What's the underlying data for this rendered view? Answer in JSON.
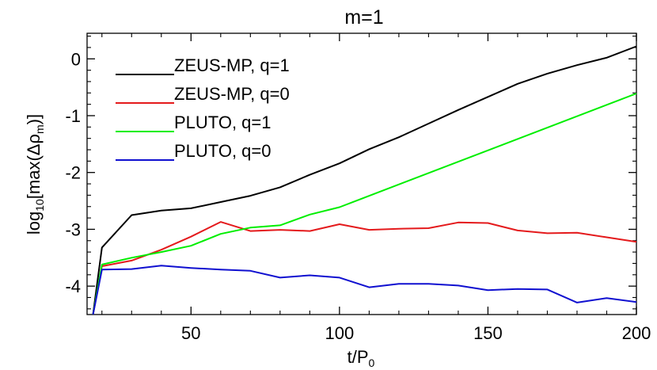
{
  "chart_data": {
    "type": "line",
    "title": "m=1",
    "xlabel": "t/P",
    "xlabel_sub": "0",
    "ylabel_pre": "log",
    "ylabel_sub1": "10",
    "ylabel_mid": "[max(Δρ",
    "ylabel_sub2": "m",
    "ylabel_post": ")]",
    "xlim": [
      15,
      200
    ],
    "ylim": [
      -4.5,
      0.45
    ],
    "xticks": [
      50,
      100,
      150,
      200
    ],
    "yticks": [
      0,
      -1,
      -2,
      -3,
      -4
    ],
    "xtick_labels": [
      "50",
      "100",
      "150",
      "200"
    ],
    "ytick_labels": [
      "0",
      "-1",
      "-2",
      "-3",
      "-4"
    ],
    "legend_position": "top-left",
    "grid": false,
    "series": [
      {
        "name": "ZEUS-MP, q=1",
        "color": "#000000",
        "x": [
          17,
          20,
          30,
          40,
          50,
          60,
          70,
          80,
          90,
          100,
          110,
          120,
          130,
          140,
          150,
          160,
          170,
          180,
          190,
          200
        ],
        "y": [
          -4.5,
          -3.32,
          -2.75,
          -2.67,
          -2.63,
          -2.52,
          -2.41,
          -2.26,
          -2.04,
          -1.84,
          -1.59,
          -1.38,
          -1.14,
          -0.9,
          -0.67,
          -0.44,
          -0.26,
          -0.11,
          0.02,
          0.22
        ]
      },
      {
        "name": "ZEUS-MP, q=0",
        "color": "#e41a1c",
        "x": [
          17,
          20,
          30,
          40,
          50,
          60,
          70,
          80,
          90,
          100,
          110,
          120,
          130,
          140,
          150,
          160,
          170,
          180,
          190,
          200
        ],
        "y": [
          -4.5,
          -3.65,
          -3.55,
          -3.36,
          -3.13,
          -2.87,
          -3.03,
          -3.01,
          -3.03,
          -2.91,
          -3.01,
          -2.99,
          -2.98,
          -2.88,
          -2.89,
          -3.02,
          -3.07,
          -3.06,
          -3.14,
          -3.22
        ]
      },
      {
        "name": "PLUTO, q=1",
        "color": "#00ee00",
        "x": [
          17,
          20,
          30,
          40,
          50,
          60,
          70,
          80,
          90,
          100,
          200
        ],
        "y": [
          -4.5,
          -3.62,
          -3.5,
          -3.4,
          -3.29,
          -3.08,
          -2.97,
          -2.93,
          -2.74,
          -2.61,
          -0.61
        ]
      },
      {
        "name": "PLUTO, q=0",
        "color": "#1010d0",
        "x": [
          17,
          20,
          30,
          40,
          50,
          60,
          70,
          80,
          90,
          100,
          110,
          120,
          130,
          140,
          150,
          160,
          170,
          180,
          190,
          200
        ],
        "y": [
          -4.5,
          -3.71,
          -3.7,
          -3.64,
          -3.68,
          -3.71,
          -3.73,
          -3.85,
          -3.81,
          -3.85,
          -4.02,
          -3.96,
          -3.96,
          -3.99,
          -4.07,
          -4.05,
          -4.06,
          -4.29,
          -4.21,
          -4.28
        ]
      }
    ]
  }
}
